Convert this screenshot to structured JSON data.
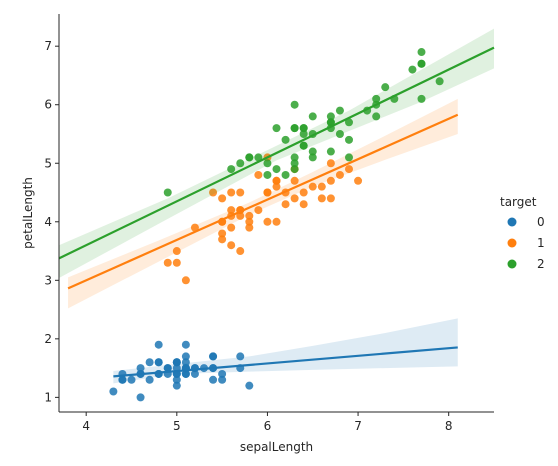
{
  "chart_data": {
    "type": "scatter",
    "xlabel": "sepalLength",
    "ylabel": "petalLength",
    "xlim": [
      3.7,
      8.5
    ],
    "ylim": [
      0.75,
      7.55
    ],
    "x_ticks": [
      4,
      5,
      6,
      7,
      8
    ],
    "y_ticks": [
      1,
      2,
      3,
      4,
      5,
      6,
      7
    ],
    "grid": false,
    "legend": {
      "title": "target",
      "placement": "right",
      "entries": [
        "0",
        "1",
        "2"
      ]
    },
    "series": [
      {
        "name": "0",
        "color": "#1f77b4",
        "regression": {
          "x0": 4.3,
          "x1": 8.1,
          "slope": 0.13,
          "intercept": 0.8
        },
        "ci": {
          "x": [
            4.3,
            5.0,
            5.8,
            6.5,
            7.3,
            8.1
          ],
          "upper": [
            1.45,
            1.57,
            1.7,
            1.88,
            2.1,
            2.35
          ],
          "lower": [
            1.24,
            1.4,
            1.44,
            1.47,
            1.5,
            1.53
          ]
        },
        "points": [
          [
            5.1,
            1.4
          ],
          [
            4.9,
            1.4
          ],
          [
            4.7,
            1.3
          ],
          [
            4.6,
            1.5
          ],
          [
            5.0,
            1.4
          ],
          [
            5.4,
            1.7
          ],
          [
            4.6,
            1.4
          ],
          [
            5.0,
            1.5
          ],
          [
            4.4,
            1.4
          ],
          [
            4.9,
            1.5
          ],
          [
            5.4,
            1.5
          ],
          [
            4.8,
            1.6
          ],
          [
            4.8,
            1.4
          ],
          [
            4.3,
            1.1
          ],
          [
            5.8,
            1.2
          ],
          [
            5.7,
            1.5
          ],
          [
            5.4,
            1.3
          ],
          [
            5.1,
            1.4
          ],
          [
            5.7,
            1.7
          ],
          [
            5.1,
            1.5
          ],
          [
            5.4,
            1.7
          ],
          [
            5.1,
            1.5
          ],
          [
            4.6,
            1.0
          ],
          [
            5.1,
            1.7
          ],
          [
            4.8,
            1.9
          ],
          [
            5.0,
            1.6
          ],
          [
            5.0,
            1.6
          ],
          [
            5.2,
            1.5
          ],
          [
            5.2,
            1.4
          ],
          [
            4.7,
            1.6
          ],
          [
            4.8,
            1.6
          ],
          [
            5.4,
            1.5
          ],
          [
            5.2,
            1.5
          ],
          [
            5.5,
            1.4
          ],
          [
            4.9,
            1.5
          ],
          [
            5.0,
            1.2
          ],
          [
            5.5,
            1.3
          ],
          [
            4.4,
            1.3
          ],
          [
            5.1,
            1.5
          ],
          [
            5.0,
            1.3
          ],
          [
            4.5,
            1.3
          ],
          [
            4.4,
            1.3
          ],
          [
            5.0,
            1.6
          ],
          [
            5.1,
            1.9
          ],
          [
            4.8,
            1.4
          ],
          [
            5.1,
            1.6
          ],
          [
            4.6,
            1.4
          ],
          [
            5.3,
            1.5
          ],
          [
            5.0,
            1.4
          ]
        ]
      },
      {
        "name": "1",
        "color": "#ff7f0e",
        "regression": {
          "x0": 3.8,
          "x1": 8.1,
          "slope": 0.69,
          "intercept": 0.24
        },
        "ci": {
          "x": [
            3.8,
            4.8,
            5.8,
            6.5,
            7.3,
            8.1
          ],
          "upper": [
            3.05,
            3.68,
            4.33,
            4.85,
            5.47,
            6.1
          ],
          "lower": [
            2.52,
            3.32,
            4.12,
            4.6,
            5.06,
            5.5
          ]
        },
        "points": [
          [
            7.0,
            4.7
          ],
          [
            6.4,
            4.5
          ],
          [
            6.9,
            4.9
          ],
          [
            5.5,
            4.0
          ],
          [
            6.5,
            4.6
          ],
          [
            5.7,
            4.5
          ],
          [
            6.3,
            4.7
          ],
          [
            4.9,
            3.3
          ],
          [
            6.6,
            4.6
          ],
          [
            5.2,
            3.9
          ],
          [
            5.0,
            3.5
          ],
          [
            5.9,
            4.2
          ],
          [
            6.0,
            4.0
          ],
          [
            6.1,
            4.7
          ],
          [
            5.6,
            3.6
          ],
          [
            6.7,
            4.4
          ],
          [
            5.6,
            4.5
          ],
          [
            5.8,
            4.1
          ],
          [
            6.2,
            4.5
          ],
          [
            5.6,
            3.9
          ],
          [
            5.9,
            4.8
          ],
          [
            6.1,
            4.0
          ],
          [
            6.3,
            4.9
          ],
          [
            6.1,
            4.7
          ],
          [
            6.4,
            4.3
          ],
          [
            6.6,
            4.4
          ],
          [
            6.8,
            4.8
          ],
          [
            6.7,
            5.0
          ],
          [
            6.0,
            4.5
          ],
          [
            5.7,
            3.5
          ],
          [
            5.5,
            3.8
          ],
          [
            5.5,
            3.7
          ],
          [
            5.8,
            3.9
          ],
          [
            6.0,
            5.1
          ],
          [
            5.4,
            4.5
          ],
          [
            6.0,
            4.5
          ],
          [
            6.7,
            4.7
          ],
          [
            6.3,
            4.4
          ],
          [
            5.6,
            4.1
          ],
          [
            5.5,
            4.0
          ],
          [
            5.5,
            4.4
          ],
          [
            6.1,
            4.6
          ],
          [
            5.8,
            4.0
          ],
          [
            5.0,
            3.3
          ],
          [
            5.6,
            4.2
          ],
          [
            5.7,
            4.2
          ],
          [
            5.7,
            4.2
          ],
          [
            6.2,
            4.3
          ],
          [
            5.1,
            3.0
          ],
          [
            5.7,
            4.1
          ]
        ]
      },
      {
        "name": "2",
        "color": "#2ca02c",
        "regression": {
          "x0": 3.7,
          "x1": 8.5,
          "slope": 0.75,
          "intercept": 0.6
        },
        "ci": {
          "x": [
            3.7,
            4.9,
            6.1,
            6.9,
            7.7,
            8.5
          ],
          "upper": [
            3.6,
            4.4,
            5.3,
            5.9,
            6.6,
            7.3
          ],
          "lower": [
            3.04,
            4.05,
            5.05,
            5.55,
            6.05,
            6.62
          ]
        },
        "points": [
          [
            6.3,
            6.0
          ],
          [
            5.8,
            5.1
          ],
          [
            7.1,
            5.9
          ],
          [
            6.3,
            5.6
          ],
          [
            6.5,
            5.8
          ],
          [
            7.6,
            6.6
          ],
          [
            4.9,
            4.5
          ],
          [
            7.3,
            6.3
          ],
          [
            6.7,
            5.8
          ],
          [
            7.2,
            6.1
          ],
          [
            6.5,
            5.1
          ],
          [
            6.4,
            5.3
          ],
          [
            6.8,
            5.5
          ],
          [
            5.7,
            5.0
          ],
          [
            5.8,
            5.1
          ],
          [
            6.4,
            5.3
          ],
          [
            6.5,
            5.5
          ],
          [
            7.7,
            6.7
          ],
          [
            7.7,
            6.9
          ],
          [
            6.0,
            5.0
          ],
          [
            6.9,
            5.7
          ],
          [
            5.6,
            4.9
          ],
          [
            7.7,
            6.7
          ],
          [
            6.3,
            4.9
          ],
          [
            6.7,
            5.7
          ],
          [
            7.2,
            6.0
          ],
          [
            6.2,
            4.8
          ],
          [
            6.1,
            4.9
          ],
          [
            6.4,
            5.6
          ],
          [
            7.2,
            5.8
          ],
          [
            7.4,
            6.1
          ],
          [
            7.9,
            6.4
          ],
          [
            6.4,
            5.6
          ],
          [
            6.3,
            5.1
          ],
          [
            6.1,
            5.6
          ],
          [
            7.7,
            6.1
          ],
          [
            6.3,
            5.6
          ],
          [
            6.4,
            5.5
          ],
          [
            6.0,
            4.8
          ],
          [
            6.9,
            5.4
          ],
          [
            6.7,
            5.6
          ],
          [
            6.9,
            5.1
          ],
          [
            6.8,
            5.9
          ],
          [
            6.7,
            5.7
          ],
          [
            6.7,
            5.2
          ],
          [
            6.3,
            5.0
          ],
          [
            6.5,
            5.2
          ],
          [
            6.2,
            5.4
          ],
          [
            5.9,
            5.1
          ]
        ]
      }
    ]
  }
}
